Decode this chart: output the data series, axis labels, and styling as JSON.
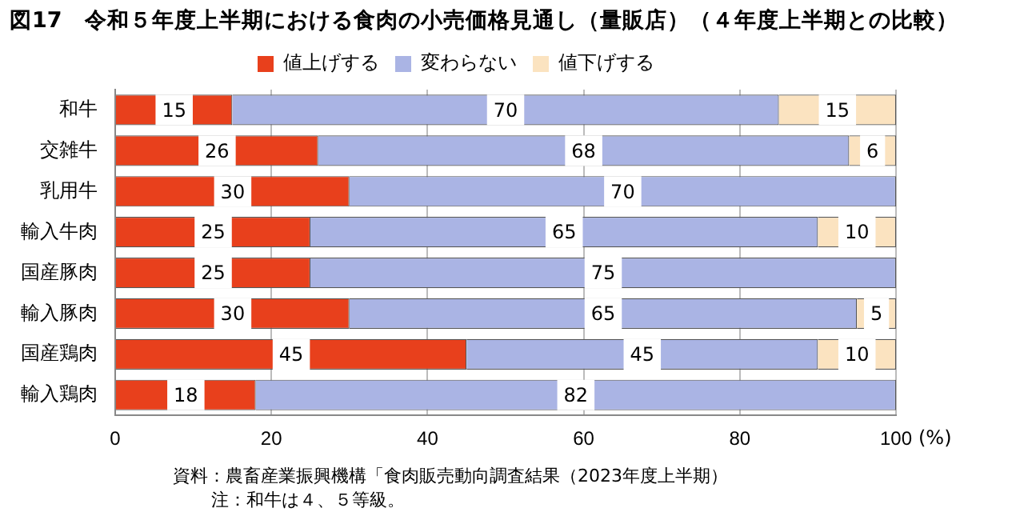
{
  "chart_data": {
    "type": "bar",
    "orientation": "horizontal",
    "stacked": true,
    "title": "図17　令和５年度上半期における食肉の小売価格見通し（量販店）（４年度上半期との比較）",
    "xlabel": "(%)",
    "categories": [
      "和牛",
      "交雑牛",
      "乳用牛",
      "輸入牛肉",
      "国産豚肉",
      "輸入豚肉",
      "国産鶏肉",
      "輸入鶏肉"
    ],
    "series": [
      {
        "name": "値上げする",
        "color": "#e8401c",
        "values": [
          15,
          26,
          30,
          25,
          25,
          30,
          45,
          18
        ],
        "value_labels": [
          "15",
          "26",
          "30",
          "25",
          "25",
          "30",
          "45",
          "18"
        ]
      },
      {
        "name": "変わらない",
        "color": "#aab4e4",
        "values": [
          70,
          68,
          70,
          65,
          75,
          65,
          45,
          82
        ],
        "value_labels": [
          "70",
          "68",
          "70",
          "65",
          "75",
          "65",
          "45",
          "82"
        ]
      },
      {
        "name": "値下げする",
        "color": "#fbe3c0",
        "values": [
          15,
          6,
          0,
          10,
          0,
          5,
          10,
          0
        ],
        "value_labels": [
          "15",
          "6",
          null,
          "10",
          null,
          "5",
          "10",
          null
        ]
      }
    ],
    "xlim": [
      0,
      100
    ],
    "xticks": [
      0,
      20,
      40,
      60,
      80,
      100
    ],
    "grid": "x",
    "legend": "top",
    "annotations": [
      "資料：農畜産業振興機構「食肉販売動向調査結果（2023年度上半期）",
      "注：和牛は４、５等級。"
    ]
  }
}
